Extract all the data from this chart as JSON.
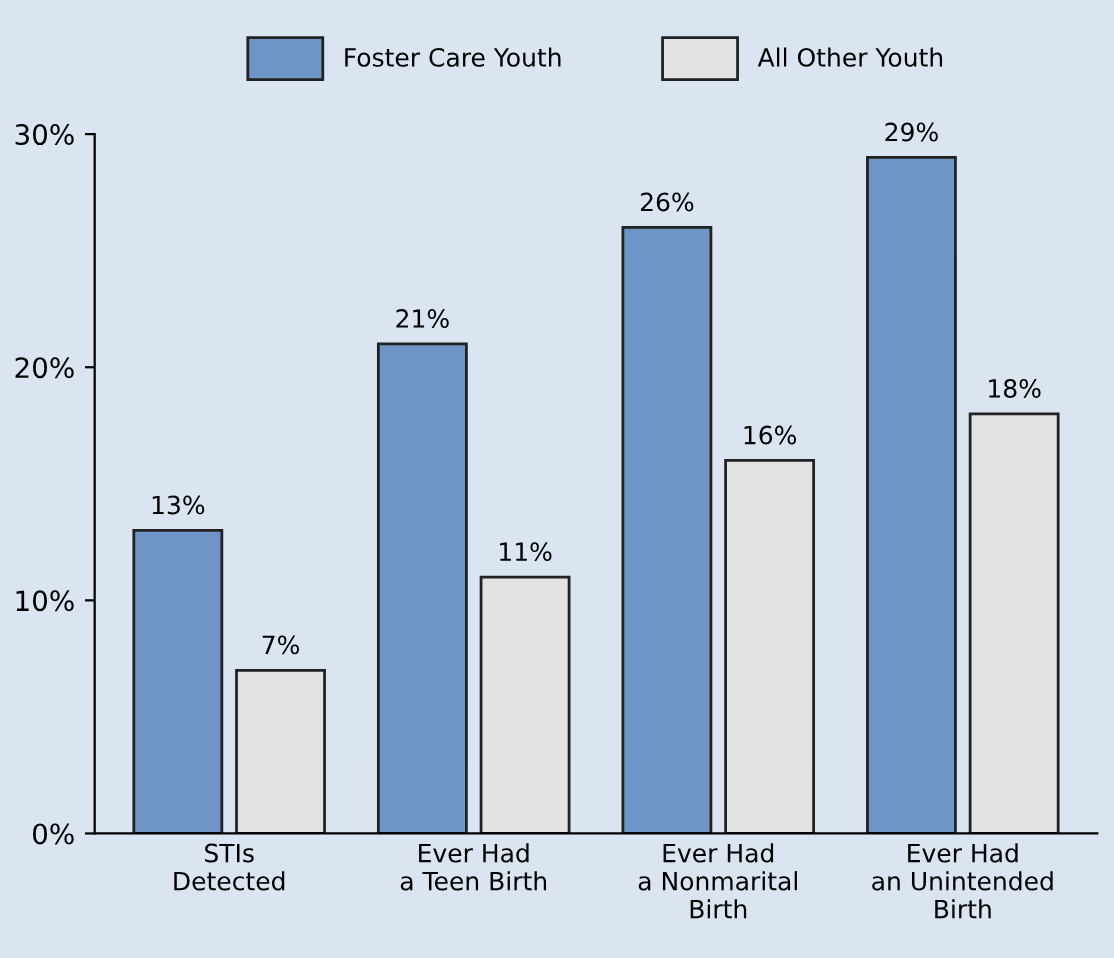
{
  "chart_data": {
    "type": "bar",
    "categories": [
      "STIs\nDetected",
      "Ever Had\na Teen Birth",
      "Ever Had\na Nonmarital\nBirth",
      "Ever Had\nan Unintended\nBirth"
    ],
    "series": [
      {
        "name": "Foster Care Youth",
        "color": "#6e95c6",
        "values": [
          13,
          21,
          26,
          29
        ],
        "value_labels": [
          "13%",
          "21%",
          "26%",
          "29%"
        ]
      },
      {
        "name": "All Other Youth",
        "color": "#e1e2e4",
        "values": [
          7,
          11,
          16,
          18
        ],
        "value_labels": [
          "7%",
          "11%",
          "16%",
          "18%"
        ]
      }
    ],
    "ylim": [
      0,
      30
    ],
    "yticks": [
      {
        "value": 0,
        "label": "0%"
      },
      {
        "value": 10,
        "label": "10%"
      },
      {
        "value": 20,
        "label": "20%"
      },
      {
        "value": 30,
        "label": "30%"
      }
    ],
    "grid": false,
    "legend": "top"
  }
}
